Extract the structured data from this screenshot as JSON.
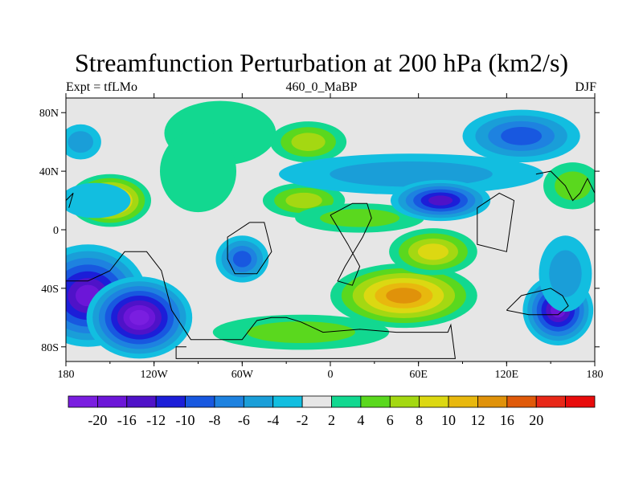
{
  "title": "Streamfunction Perturbation at 200 hPa (km2/s)",
  "subtitle_left": "Expt = tfLMo",
  "subtitle_center": "460_0_MaBP",
  "subtitle_right": "DJF",
  "map": {
    "background_color": "#e6e6e6",
    "lon_range": [
      -180,
      180
    ],
    "lat_range": [
      -90,
      90
    ],
    "lon_ticks": [
      {
        "value": -180,
        "label": "180"
      },
      {
        "value": -120,
        "label": "120W"
      },
      {
        "value": -60,
        "label": "60W"
      },
      {
        "value": 0,
        "label": "0"
      },
      {
        "value": 60,
        "label": "60E"
      },
      {
        "value": 120,
        "label": "120E"
      },
      {
        "value": 180,
        "label": "180"
      }
    ],
    "lat_ticks": [
      {
        "value": 80,
        "label": "80N"
      },
      {
        "value": 40,
        "label": "40N"
      },
      {
        "value": 0,
        "label": "0"
      },
      {
        "value": -40,
        "label": "40S"
      },
      {
        "value": -80,
        "label": "80S"
      }
    ]
  },
  "colorbar": {
    "colors": [
      "#7a1ee0",
      "#6c16d8",
      "#4f12c8",
      "#1c1ed8",
      "#1858e0",
      "#1e82e0",
      "#1a9ed8",
      "#12bee0",
      "#e6e6e6",
      "#12d890",
      "#5ad81e",
      "#a4d812",
      "#dcd812",
      "#e8b80e",
      "#e0920a",
      "#e05a0a",
      "#e82818",
      "#e80c0c"
    ],
    "labels": [
      "-20",
      "-16",
      "-12",
      "-10",
      "-8",
      "-6",
      "-4",
      "-2",
      "2",
      "4",
      "6",
      "8",
      "10",
      "12",
      "16",
      "20"
    ]
  },
  "blobs": [
    {
      "lon": -150,
      "lat": 20,
      "rx": 28,
      "ry": 18,
      "v": 14
    },
    {
      "lon": -160,
      "lat": 20,
      "rx": 24,
      "ry": 12,
      "v": -3
    },
    {
      "lon": -170,
      "lat": 60,
      "rx": 14,
      "ry": 12,
      "v": -4
    },
    {
      "lon": -75,
      "lat": 66,
      "rx": 38,
      "ry": 22,
      "v": 3
    },
    {
      "lon": -90,
      "lat": 40,
      "rx": 26,
      "ry": 28,
      "v": 3
    },
    {
      "lon": -15,
      "lat": 60,
      "rx": 26,
      "ry": 14,
      "v": 6
    },
    {
      "lon": -18,
      "lat": 20,
      "rx": 28,
      "ry": 12,
      "v": 7
    },
    {
      "lon": 20,
      "lat": 8,
      "rx": 44,
      "ry": 10,
      "v": 4
    },
    {
      "lon": 55,
      "lat": 38,
      "rx": 90,
      "ry": 14,
      "v": -4
    },
    {
      "lon": 75,
      "lat": 20,
      "rx": 34,
      "ry": 14,
      "v": -14
    },
    {
      "lon": 130,
      "lat": 64,
      "rx": 40,
      "ry": 18,
      "v": -8
    },
    {
      "lon": 165,
      "lat": 30,
      "rx": 20,
      "ry": 16,
      "v": 4
    },
    {
      "lon": -165,
      "lat": -45,
      "rx": 40,
      "ry": 35,
      "v": -16
    },
    {
      "lon": -130,
      "lat": -60,
      "rx": 36,
      "ry": 28,
      "v": -20
    },
    {
      "lon": -60,
      "lat": -20,
      "rx": 18,
      "ry": 16,
      "v": -8
    },
    {
      "lon": -20,
      "lat": -70,
      "rx": 60,
      "ry": 12,
      "v": 5
    },
    {
      "lon": 50,
      "lat": -45,
      "rx": 50,
      "ry": 22,
      "v": 14
    },
    {
      "lon": 70,
      "lat": -15,
      "rx": 30,
      "ry": 16,
      "v": 9
    },
    {
      "lon": 155,
      "lat": -55,
      "rx": 24,
      "ry": 24,
      "v": -16
    },
    {
      "lon": 160,
      "lat": -30,
      "rx": 18,
      "ry": 26,
      "v": -4
    }
  ],
  "coastlines": [
    [
      [
        -180,
        -35
      ],
      [
        -165,
        -35
      ],
      [
        -150,
        -28
      ],
      [
        -140,
        -15
      ],
      [
        -125,
        -15
      ],
      [
        -115,
        -28
      ],
      [
        -108,
        -55
      ],
      [
        -95,
        -75
      ],
      [
        -60,
        -75
      ],
      [
        -50,
        -62
      ],
      [
        -40,
        -60
      ],
      [
        -30,
        -60
      ],
      [
        -20,
        -63
      ],
      [
        -5,
        -70
      ],
      [
        20,
        -68
      ],
      [
        45,
        -70
      ],
      [
        80,
        -70
      ],
      [
        82,
        -65
      ],
      [
        85,
        -88
      ],
      [
        -105,
        -88
      ],
      [
        -105,
        -80
      ],
      [
        -98,
        -80
      ]
    ],
    [
      [
        -55,
        5
      ],
      [
        -45,
        5
      ],
      [
        -40,
        -15
      ],
      [
        -50,
        -30
      ],
      [
        -65,
        -30
      ],
      [
        -70,
        -20
      ],
      [
        -70,
        -5
      ],
      [
        -55,
        5
      ]
    ],
    [
      [
        0,
        10
      ],
      [
        15,
        18
      ],
      [
        25,
        18
      ],
      [
        28,
        8
      ],
      [
        22,
        -5
      ],
      [
        10,
        -25
      ],
      [
        5,
        -35
      ],
      [
        15,
        -38
      ],
      [
        20,
        -25
      ],
      [
        12,
        -10
      ],
      [
        0,
        10
      ]
    ],
    [
      [
        100,
        15
      ],
      [
        115,
        25
      ],
      [
        125,
        20
      ],
      [
        120,
        -15
      ],
      [
        100,
        -10
      ],
      [
        100,
        15
      ]
    ],
    [
      [
        120,
        -55
      ],
      [
        130,
        -45
      ],
      [
        150,
        -40
      ],
      [
        158,
        -45
      ],
      [
        162,
        -52
      ],
      [
        155,
        -58
      ],
      [
        135,
        -58
      ],
      [
        120,
        -55
      ]
    ],
    [
      [
        -180,
        20
      ],
      [
        -175,
        25
      ],
      [
        -178,
        15
      ]
    ],
    [
      [
        140,
        38
      ],
      [
        150,
        40
      ],
      [
        160,
        30
      ],
      [
        165,
        20
      ],
      [
        170,
        25
      ],
      [
        175,
        35
      ],
      [
        180,
        25
      ]
    ]
  ]
}
